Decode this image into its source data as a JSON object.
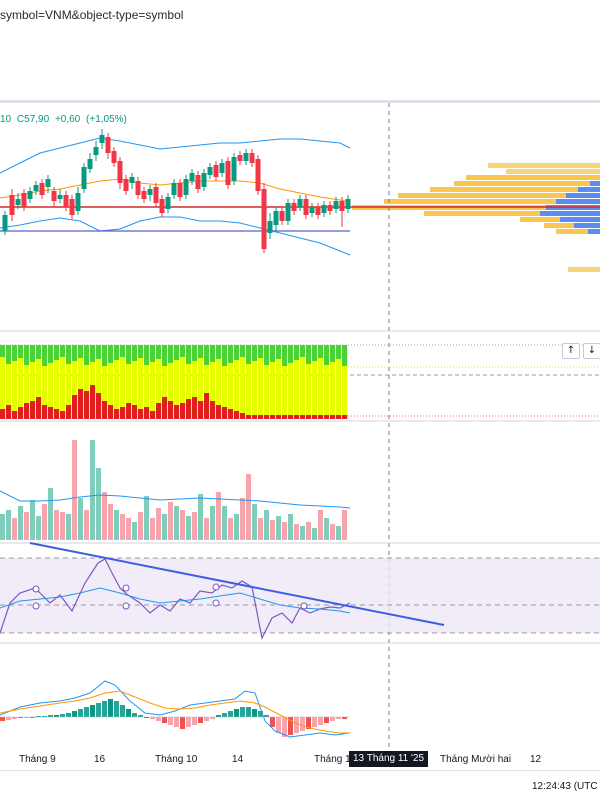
{
  "browser": {
    "url": "symbol=VNM&object-type=symbol"
  },
  "legend": {
    "prefix": "10",
    "close": "C57,90",
    "change": "+0,60",
    "change_pct": "(+1,05%)"
  },
  "time_axis": {
    "labels": [
      "Tháng 9",
      "16",
      "Tháng 10",
      "14",
      "Tháng 1",
      "Tháng Mười hai",
      "12"
    ],
    "crosshair": "13 Tháng 11 '25"
  },
  "status": {
    "clock": "12:24:43 (UTC"
  },
  "colors": {
    "up": "#089981",
    "down": "#f23645",
    "bollinger": "#2196f3",
    "macd_signal": "#ff9800",
    "trend_line": "#3d5ee1"
  },
  "icons": [
    "arrow-up-icon",
    "arrow-down-icon"
  ]
}
